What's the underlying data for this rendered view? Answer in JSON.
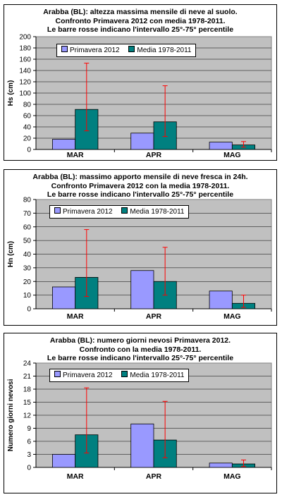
{
  "chart_data": [
    {
      "type": "bar",
      "title_lines": [
        "Arabba (BL): altezza massima mensile di neve al suolo.",
        "Confronto Primavera 2012 con media 1978-2011.",
        "Le barre rosse indicano l'intervallo 25°-75° percentile"
      ],
      "ylabel": "Hs (cm)",
      "xlabel": "",
      "categories": [
        "MAR",
        "APR",
        "MAG"
      ],
      "ylim": [
        0,
        200
      ],
      "yticks": [
        "0",
        "20",
        "40",
        "60",
        "80",
        "100",
        "120",
        "140",
        "160",
        "180",
        "200"
      ],
      "grid": true,
      "legend_position": "top-left",
      "series": [
        {
          "name": "Primavera 2012",
          "color": "#9999FF",
          "values": [
            18,
            29,
            13
          ]
        },
        {
          "name": "Media 1978-2011",
          "color": "#008080",
          "values": [
            71,
            49,
            8
          ],
          "error_range": [
            [
              33,
              153
            ],
            [
              23,
              113
            ],
            [
              4,
              14
            ]
          ]
        }
      ],
      "error_color": "#FF0000"
    },
    {
      "type": "bar",
      "title_lines": [
        "Arabba (BL): massimo apporto mensile di neve fresca in 24h.",
        "Confronto Primavera 2012 con la media 1978-2011.",
        "Le barre rosse indicano l'intervallo 25°-75° percentile"
      ],
      "ylabel": "Hn (cm)",
      "xlabel": "",
      "categories": [
        "MAR",
        "APR",
        "MAG"
      ],
      "ylim": [
        0,
        80
      ],
      "yticks": [
        "0",
        "10",
        "20",
        "30",
        "40",
        "50",
        "60",
        "70",
        "80"
      ],
      "grid": true,
      "legend_position": "top-left",
      "series": [
        {
          "name": "Primavera 2012",
          "color": "#9999FF",
          "values": [
            16,
            28,
            13
          ]
        },
        {
          "name": "Media 1978-2011",
          "color": "#008080",
          "values": [
            23,
            20,
            4
          ],
          "error_range": [
            [
              9,
              58
            ],
            [
              10,
              45
            ],
            [
              1,
              10
            ]
          ]
        }
      ],
      "error_color": "#FF0000"
    },
    {
      "type": "bar",
      "title_lines": [
        "Arabba (BL): numero giorni nevosi Primavera 2012.",
        "Confronto con la media 1978-2011.",
        "Le barre rosse indicano l'intervallo 25°-75° percentile"
      ],
      "ylabel": "Numero giorni nevosi",
      "xlabel": "",
      "categories": [
        "MAR",
        "APR",
        "MAG"
      ],
      "ylim": [
        0,
        24
      ],
      "yticks": [
        "0",
        "3",
        "6",
        "9",
        "12",
        "15",
        "18",
        "21",
        "24"
      ],
      "grid": true,
      "legend_position": "top-left",
      "series": [
        {
          "name": "Primavera 2012",
          "color": "#9999FF",
          "values": [
            3,
            10,
            1
          ]
        },
        {
          "name": "Media 1978-2011",
          "color": "#008080",
          "values": [
            7.5,
            6.3,
            0.8
          ],
          "error_range": [
            [
              3.3,
              18.3
            ],
            [
              2.2,
              15.2
            ],
            [
              0.2,
              1.7
            ]
          ]
        }
      ],
      "error_color": "#FF0000"
    }
  ]
}
